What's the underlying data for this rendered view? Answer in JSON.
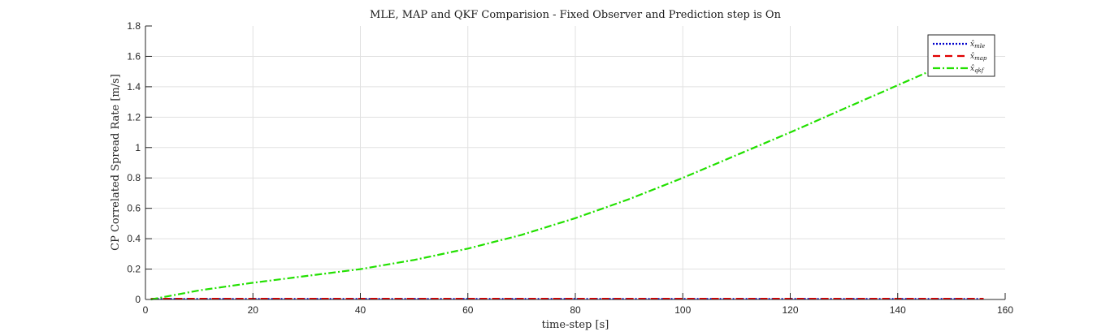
{
  "chart_data": {
    "type": "line",
    "title": "MLE, MAP and QKF Comparision - Fixed Observer and Prediction step is On",
    "xlabel": "time-step [s]",
    "ylabel": "CP Correlated Spread Rate [m/s]",
    "xlim": [
      0,
      160
    ],
    "ylim": [
      0,
      1.8
    ],
    "xticks": [
      0,
      20,
      40,
      60,
      80,
      100,
      120,
      140,
      160
    ],
    "yticks": [
      0,
      0.2,
      0.4,
      0.6,
      0.8,
      1,
      1.2,
      1.4,
      1.6,
      1.8
    ],
    "grid": true,
    "legend_position": "top-right",
    "series": [
      {
        "name": "x̂mle",
        "name_base": "x̂",
        "name_sub": "mle",
        "color": "#0000cc",
        "style": "dotted",
        "x": [
          1,
          20,
          40,
          60,
          80,
          100,
          120,
          140,
          156
        ],
        "y": [
          0.003,
          0.003,
          0.003,
          0.003,
          0.003,
          0.003,
          0.003,
          0.003,
          0.003
        ]
      },
      {
        "name": "x̂map",
        "name_base": "x̂",
        "name_sub": "map",
        "color": "#e00000",
        "style": "dashed",
        "x": [
          1,
          20,
          40,
          60,
          80,
          100,
          120,
          140,
          156
        ],
        "y": [
          0.005,
          0.005,
          0.005,
          0.005,
          0.005,
          0.005,
          0.005,
          0.005,
          0.005
        ]
      },
      {
        "name": "x̂qkf",
        "name_base": "x̂",
        "name_sub": "qkf",
        "color": "#22e000",
        "style": "dashdot",
        "x": [
          1,
          10,
          20,
          30,
          40,
          50,
          60,
          70,
          80,
          90,
          100,
          110,
          120,
          130,
          140,
          150,
          156
        ],
        "y": [
          0.0,
          0.06,
          0.11,
          0.155,
          0.2,
          0.26,
          0.335,
          0.425,
          0.535,
          0.66,
          0.8,
          0.95,
          1.1,
          1.255,
          1.41,
          1.565,
          1.66
        ]
      }
    ]
  }
}
